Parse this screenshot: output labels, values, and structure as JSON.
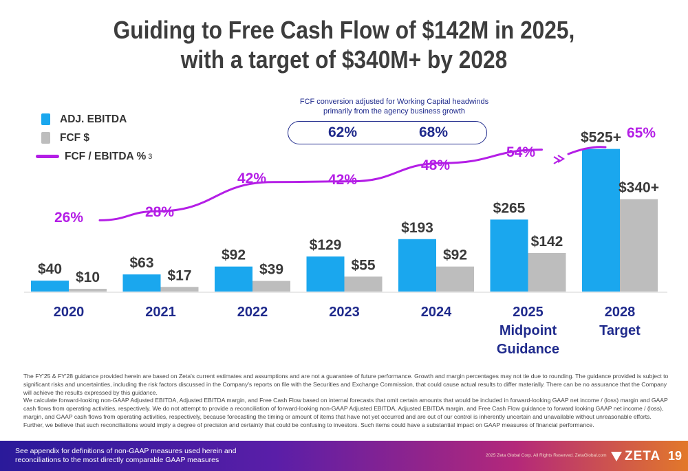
{
  "title_line1": "Guiding to Free Cash Flow of $142M in 2025,",
  "title_line2": "with a target of $340M+ by 2028",
  "legend": {
    "ebitda": "ADJ. EBITDA",
    "fcf": "FCF $",
    "ratio": "FCF / EBITDA %",
    "ratio_sup": "3"
  },
  "annotation": {
    "line1": "FCF conversion adjusted for Working Capital headwinds",
    "line2": "primarily from the agency business growth",
    "pill_left": "62%",
    "pill_right": "68%"
  },
  "colors": {
    "ebitda": "#1aa7ee",
    "fcf": "#bdbdbd",
    "ratio": "#b41ee6",
    "category": "#1f2a8c",
    "value_label": "#3a3a3a"
  },
  "chart_data": {
    "type": "bar",
    "categories": [
      "2020",
      "2021",
      "2022",
      "2023",
      "2024",
      "2025 Midpoint Guidance",
      "2028 Target"
    ],
    "category_lines": [
      [
        "2020"
      ],
      [
        "2021"
      ],
      [
        "2022"
      ],
      [
        "2023"
      ],
      [
        "2024"
      ],
      [
        "2025",
        "Midpoint",
        "Guidance"
      ],
      [
        "2028",
        "Target"
      ]
    ],
    "series": [
      {
        "name": "ADJ. EBITDA",
        "values": [
          40,
          63,
          92,
          129,
          193,
          265,
          525
        ],
        "labels": [
          "$40",
          "$63",
          "$92",
          "$129",
          "$193",
          "$265",
          "$525+"
        ]
      },
      {
        "name": "FCF $",
        "values": [
          10,
          17,
          39,
          55,
          92,
          142,
          340
        ],
        "labels": [
          "$10",
          "$17",
          "$39",
          "$55",
          "$92",
          "$142",
          "$340+"
        ]
      }
    ],
    "line_series": {
      "name": "FCF / EBITDA %",
      "values": [
        26,
        28,
        42,
        42,
        48,
        54,
        65
      ],
      "labels": [
        "26%",
        "28%",
        "42%",
        "42%",
        "48%",
        "54%",
        "65%"
      ]
    }
  },
  "footnote": {
    "p1": "The FY'25 & FY'28 guidance provided herein are based on Zeta's current estimates and assumptions and are not a guarantee of future performance. Growth and margin percentages may not tie due to rounding. The guidance provided is subject to significant risks and uncertainties, including the risk factors discussed in the Company's reports on file with the Securities and Exchange Commission, that could cause actual results to differ materially. There can be no assurance that the Company will achieve the results expressed by this guidance.",
    "p2": "We calculate forward-looking non-GAAP Adjusted EBITDA, Adjusted EBITDA margin, and Free Cash Flow based on internal forecasts that omit certain amounts that would be included in forward-looking GAAP net income / (loss) margin and GAAP cash flows from operating activities, respectively. We do not attempt to provide a reconciliation of forward-looking non-GAAP Adjusted EBITDA, Adjusted EBITDA margin, and Free Cash Flow guidance to forward looking GAAP net income / (loss), margin, and GAAP cash flows from operating activities, respectively, because forecasting the timing or amount of items that have not yet occurred and are out of our control is inherently uncertain and unavailable without unreasonable efforts. Further, we believe that such reconciliations would imply a degree of precision and certainty that could be confusing to investors. Such items could have a substantial impact on GAAP measures of financial performance."
  },
  "footer": {
    "left_line1": "See appendix for definitions of non-GAAP measures used herein and",
    "left_line2": "reconciliations to the most directly comparable GAAP measures",
    "copyright": "2025 Zeta Global Corp. All Rights Reserved. ZetaGlobal.com",
    "logo": "ZETA",
    "page": "19"
  }
}
